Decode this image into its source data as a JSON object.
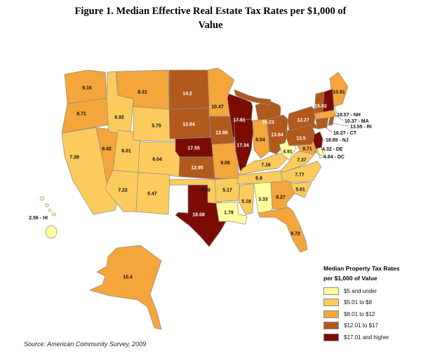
{
  "figure": {
    "title_line1": "Figure 1. Median Effective Real Estate Tax Rates per $1,000 of",
    "title_line2": "Value",
    "source": "Source: American Community Survey, 2009"
  },
  "legend": {
    "title_line1": "Median Property Tax Rates",
    "title_line2": "per $1,000 of Value",
    "bands": [
      {
        "label": "$5 and under",
        "color": "#FFFF9E"
      },
      {
        "label": "$5.01 to $8",
        "color": "#FBCC5D"
      },
      {
        "label": "$8.01 to $12",
        "color": "#F4A53B"
      },
      {
        "label": "$12.01 to $17",
        "color": "#B2591D"
      },
      {
        "label": "$17.01 and higher",
        "color": "#7A0C04"
      }
    ]
  },
  "chart_data": {
    "type": "choropleth_map",
    "title": "Figure 1. Median Effective Real Estate Tax Rates per $1,000 of Value",
    "unit": "median property tax rate per $1,000 of value",
    "label_color_rule": "bands 4-5 white labels, bands 1-3 black labels",
    "states": [
      {
        "id": "WA",
        "value": "9.16",
        "band": 3
      },
      {
        "id": "OR",
        "value": "8.71",
        "band": 3
      },
      {
        "id": "CA",
        "value": "7.39",
        "band": 2
      },
      {
        "id": "NV",
        "value": "8.42",
        "band": 3
      },
      {
        "id": "ID",
        "value": "6.92",
        "band": 2
      },
      {
        "id": "UT",
        "value": "6.01",
        "band": 2
      },
      {
        "id": "AZ",
        "value": "7.22",
        "band": 2
      },
      {
        "id": "MT",
        "value": "8.31",
        "band": 3
      },
      {
        "id": "WY",
        "value": "5.75",
        "band": 2
      },
      {
        "id": "CO",
        "value": "6.04",
        "band": 2
      },
      {
        "id": "NM",
        "value": "5.47",
        "band": 2
      },
      {
        "id": "ND",
        "value": "14.2",
        "band": 4
      },
      {
        "id": "SD",
        "value": "12.84",
        "band": 4
      },
      {
        "id": "NE",
        "value": "17.55",
        "band": 5
      },
      {
        "id": "KS",
        "value": "12.95",
        "band": 4
      },
      {
        "id": "OK",
        "value": "7.39",
        "band": 2
      },
      {
        "id": "TX",
        "value": "18.08",
        "band": 5
      },
      {
        "id": "MN",
        "value": "10.47",
        "band": 3
      },
      {
        "id": "IA",
        "value": "12.86",
        "band": 4
      },
      {
        "id": "MO",
        "value": "9.06",
        "band": 3
      },
      {
        "id": "AR",
        "value": "5.17",
        "band": 2
      },
      {
        "id": "LA",
        "value": "1.79",
        "band": 1
      },
      {
        "id": "WI",
        "value": "17.61",
        "band": 5
      },
      {
        "id": "IL",
        "value": "17.34",
        "band": 5
      },
      {
        "id": "MI",
        "value": "16.23",
        "band": 4
      },
      {
        "id": "IN",
        "value": "8.54",
        "band": 3
      },
      {
        "id": "OH",
        "value": "13.64",
        "band": 4
      },
      {
        "id": "KY",
        "value": "7.16",
        "band": 2
      },
      {
        "id": "TN",
        "value": "6.8",
        "band": 2
      },
      {
        "id": "MS",
        "value": "5.18",
        "band": 2
      },
      {
        "id": "AL",
        "value": "3.33",
        "band": 1
      },
      {
        "id": "GA",
        "value": "8.27",
        "band": 3
      },
      {
        "id": "FL",
        "value": "9.72",
        "band": 3
      },
      {
        "id": "SC",
        "value": "5.01",
        "band": 2
      },
      {
        "id": "NC",
        "value": "7.77",
        "band": 2
      },
      {
        "id": "VA",
        "value": "7.37",
        "band": 2
      },
      {
        "id": "WV",
        "value": "4.91",
        "band": 1
      },
      {
        "id": "MD",
        "value": "8.71",
        "band": 3
      },
      {
        "id": "PA",
        "value": "13.5",
        "band": 4
      },
      {
        "id": "NY",
        "value": "12.27",
        "band": 4
      },
      {
        "id": "VT",
        "value": "15.92",
        "band": 4
      },
      {
        "id": "ME",
        "value": "10.91",
        "band": 3
      },
      {
        "id": "AK",
        "value": "10.4",
        "band": 3
      },
      {
        "id": "NH",
        "value": "18.57",
        "band": 5,
        "callout": true
      },
      {
        "id": "MA",
        "value": "10.37",
        "band": 3,
        "callout": true
      },
      {
        "id": "RI",
        "value": "13.55",
        "band": 4,
        "callout": true
      },
      {
        "id": "CT",
        "value": "16.27",
        "band": 4,
        "callout": true
      },
      {
        "id": "NJ",
        "value": "18.89",
        "band": 5,
        "callout": true
      },
      {
        "id": "DE",
        "value": "4.32",
        "band": 1,
        "callout": true
      },
      {
        "id": "DC",
        "value": "4.64",
        "band": 1,
        "callout": true
      },
      {
        "id": "HI",
        "value": "2.56",
        "band": 1,
        "callout": true
      }
    ]
  }
}
